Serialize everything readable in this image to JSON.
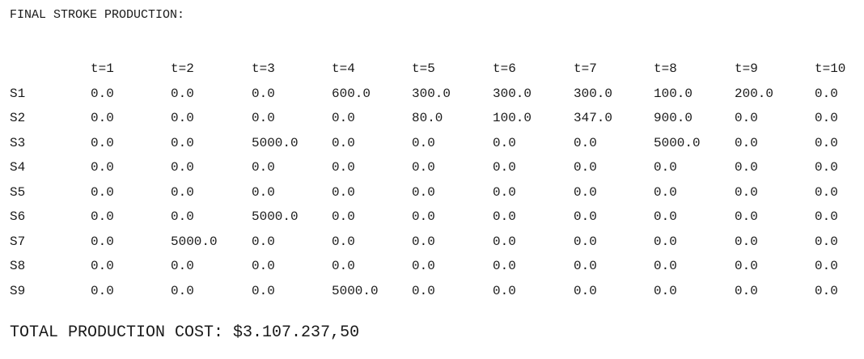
{
  "heading": "FINAL STROKE PRODUCTION:",
  "table": {
    "header": [
      "",
      "t=1",
      "t=2",
      "t=3",
      "t=4",
      "t=5",
      "t=6",
      "t=7",
      "t=8",
      "t=9",
      "t=10"
    ],
    "rows": [
      [
        "S1",
        "0.0",
        "0.0",
        "0.0",
        "600.0",
        "300.0",
        "300.0",
        "300.0",
        "100.0",
        "200.0",
        "0.0"
      ],
      [
        "S2",
        "0.0",
        "0.0",
        "0.0",
        "0.0",
        "80.0",
        "100.0",
        "347.0",
        "900.0",
        "0.0",
        "0.0"
      ],
      [
        "S3",
        "0.0",
        "0.0",
        "5000.0",
        "0.0",
        "0.0",
        "0.0",
        "0.0",
        "5000.0",
        "0.0",
        "0.0"
      ],
      [
        "S4",
        "0.0",
        "0.0",
        "0.0",
        "0.0",
        "0.0",
        "0.0",
        "0.0",
        "0.0",
        "0.0",
        "0.0"
      ],
      [
        "S5",
        "0.0",
        "0.0",
        "0.0",
        "0.0",
        "0.0",
        "0.0",
        "0.0",
        "0.0",
        "0.0",
        "0.0"
      ],
      [
        "S6",
        "0.0",
        "0.0",
        "5000.0",
        "0.0",
        "0.0",
        "0.0",
        "0.0",
        "0.0",
        "0.0",
        "0.0"
      ],
      [
        "S7",
        "0.0",
        "5000.0",
        "0.0",
        "0.0",
        "0.0",
        "0.0",
        "0.0",
        "0.0",
        "0.0",
        "0.0"
      ],
      [
        "S8",
        "0.0",
        "0.0",
        "0.0",
        "0.0",
        "0.0",
        "0.0",
        "0.0",
        "0.0",
        "0.0",
        "0.0"
      ],
      [
        "S9",
        "0.0",
        "0.0",
        "0.0",
        "5000.0",
        "0.0",
        "0.0",
        "0.0",
        "0.0",
        "0.0",
        "0.0"
      ]
    ]
  },
  "total": "TOTAL PRODUCTION COST: $3.107.237,50",
  "colors": {
    "text": "#1a1a1a",
    "background": "#ffffff"
  }
}
